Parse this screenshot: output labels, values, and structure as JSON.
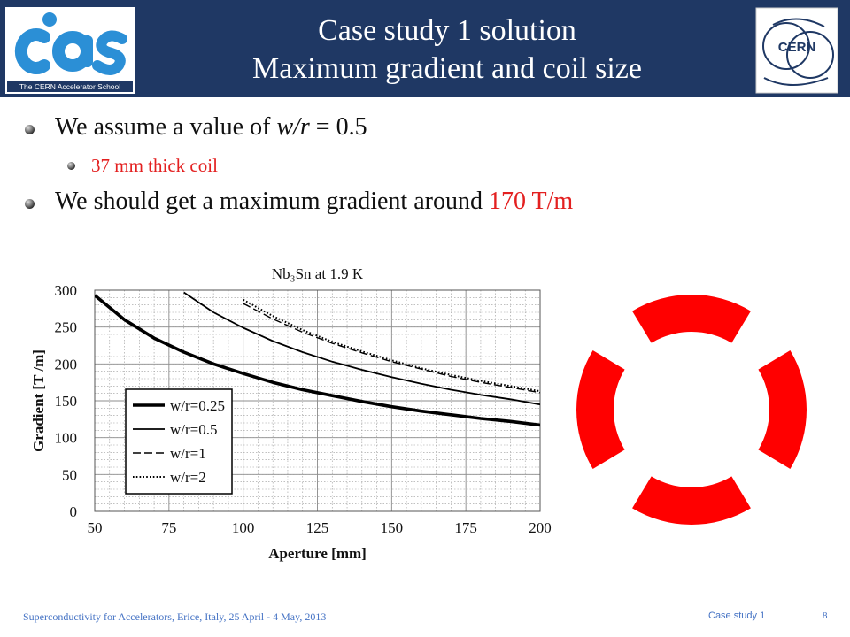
{
  "header": {
    "title_line1": "Case study 1 solution",
    "title_line2": "Maximum gradient and coil size",
    "left_logo": {
      "icon": "cas-logo",
      "tagline": "The CERN Accelerator School"
    },
    "right_logo": {
      "icon": "cern-logo",
      "text": "CERN"
    },
    "background_color": "#1f3864"
  },
  "bullets": [
    {
      "prefix": "We assume a value of ",
      "emph": "w/r",
      "suffix": " = 0.5"
    },
    {
      "sub": "37 mm thick coil"
    },
    {
      "prefix": "We should get a maximum gradient around ",
      "highlight": "170 T/m"
    }
  ],
  "chart_data": {
    "type": "line",
    "title": "Nb₃Sn at 1.9 K",
    "xlabel": "Aperture [mm]",
    "ylabel": "Gradient [T /m]",
    "xlim": [
      50,
      200
    ],
    "ylim": [
      0,
      300
    ],
    "xticks": [
      50,
      75,
      100,
      125,
      150,
      175,
      200
    ],
    "yticks": [
      0,
      50,
      100,
      150,
      200,
      250,
      300
    ],
    "grid": true,
    "legend_position": "bottom-left",
    "x": [
      50,
      60,
      70,
      80,
      90,
      100,
      110,
      120,
      130,
      140,
      150,
      160,
      170,
      180,
      190,
      200
    ],
    "series": [
      {
        "name": "w/r=0.25",
        "style": "thick-solid",
        "values": [
          293,
          260,
          235,
          216,
          200,
          187,
          175,
          165,
          157,
          149,
          142,
          136,
          131,
          126,
          122,
          117
        ]
      },
      {
        "name": "w/r=0.5",
        "style": "solid",
        "values": [
          null,
          null,
          null,
          297,
          270,
          249,
          231,
          216,
          203,
          192,
          182,
          173,
          165,
          158,
          152,
          145
        ]
      },
      {
        "name": "w/r=1",
        "style": "dashed",
        "values": [
          null,
          null,
          null,
          null,
          null,
          282,
          261,
          243,
          228,
          215,
          203,
          193,
          183,
          175,
          168,
          161
        ]
      },
      {
        "name": "w/r=2",
        "style": "dotted",
        "values": [
          null,
          null,
          null,
          null,
          null,
          287,
          265,
          246,
          230,
          217,
          205,
          194,
          185,
          177,
          170,
          163
        ]
      }
    ]
  },
  "coil_diagram": {
    "color": "#ff0000",
    "segments": 4
  },
  "footer": {
    "left": "Superconductivity for Accelerators, Erice, Italy, 25 April - 4 May, 2013",
    "right": "Case study 1",
    "page": "8"
  }
}
